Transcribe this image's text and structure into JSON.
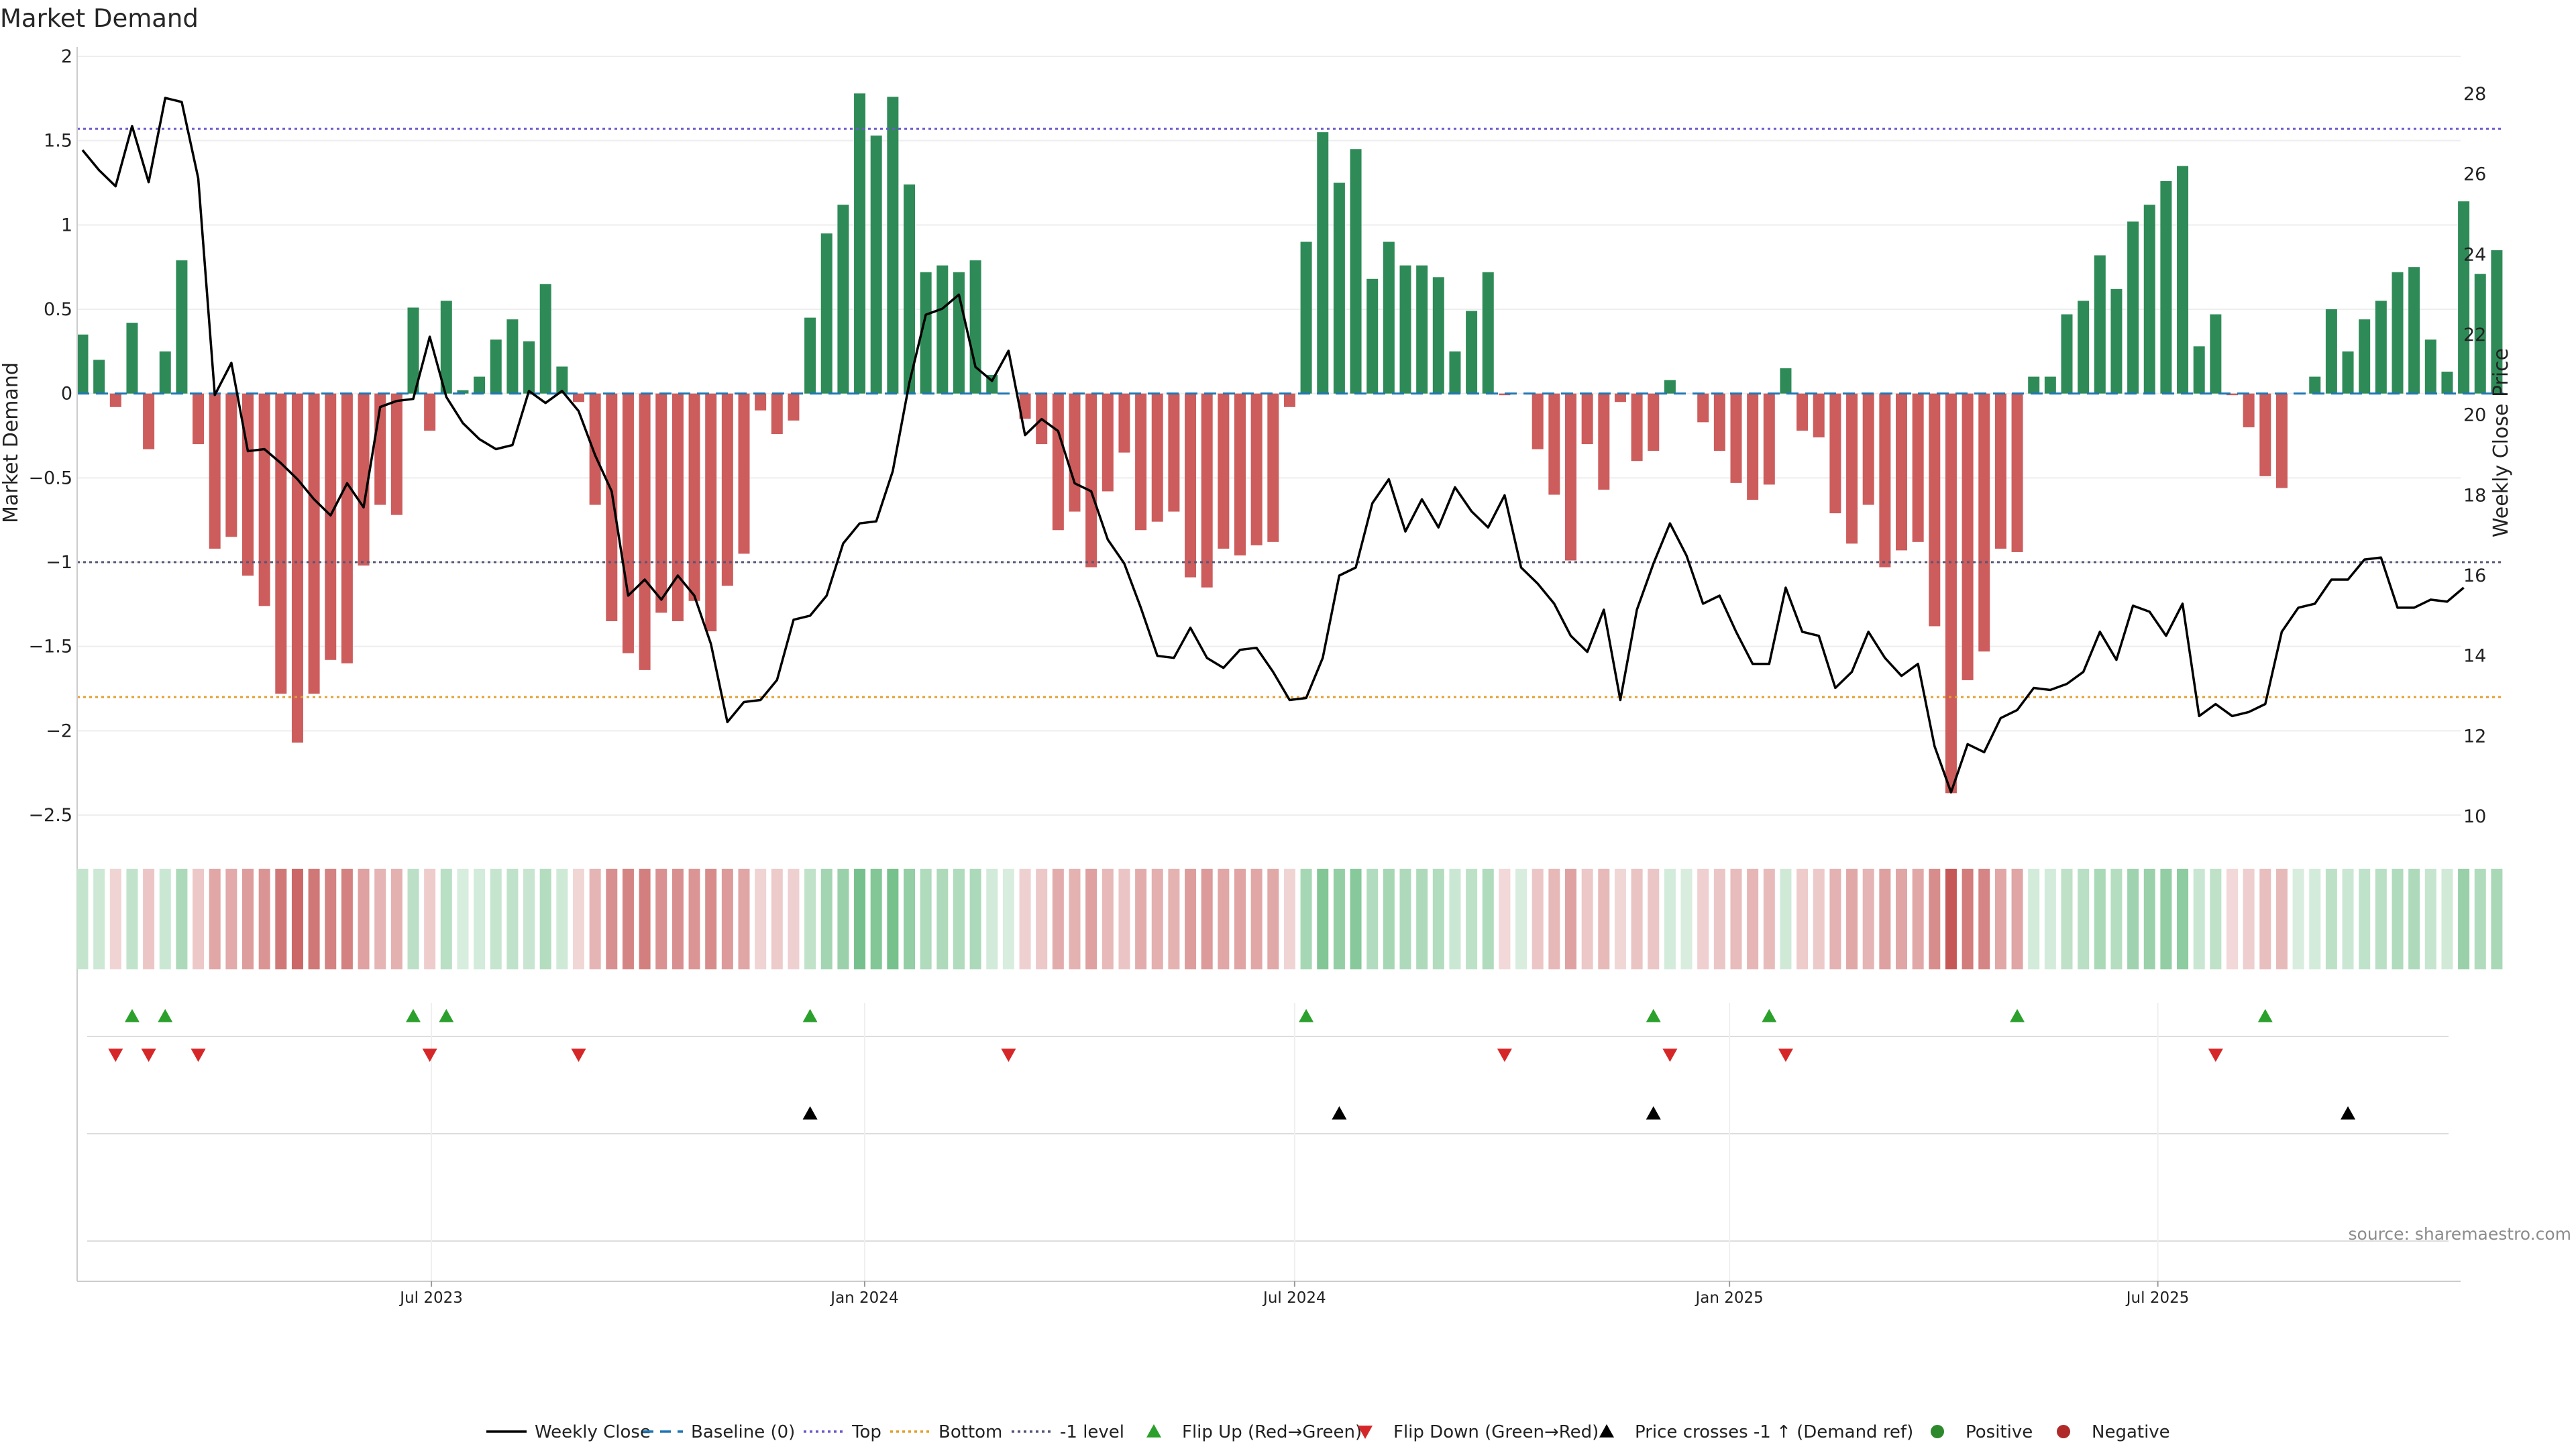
{
  "chart_data": {
    "type": "bar",
    "title": "Market Demand",
    "ylabel": "Market Demand",
    "y2label": "Weekly Close Price",
    "ylim": [
      -2.5,
      2
    ],
    "y2lim": [
      10,
      28
    ],
    "yticks": [
      "2",
      "1.5",
      "1",
      "0.5",
      "0",
      "−0.5",
      "−1",
      "−1.5",
      "−2",
      "−2.5"
    ],
    "y2ticks": [
      "28",
      "26",
      "24",
      "22",
      "20",
      "18",
      "16",
      "14",
      "12",
      "10"
    ],
    "xtick_labels": [
      "Jul 2023",
      "Jan 2024",
      "Jul 2024",
      "Jan 2025",
      "Jul 2025"
    ],
    "xtick_weeks": [
      21.1,
      47.3,
      73.3,
      99.6,
      125.5
    ],
    "levels": {
      "top": 1.57,
      "bottom": -1.8,
      "minus_one": -1,
      "baseline": 0
    },
    "colors": {
      "positive": "#2e8b57",
      "negative": "#cd5c5c",
      "price": "#000000",
      "top": "#6a5acd",
      "bottom": "#e3a02e",
      "minus_one": "#555577",
      "baseline": "#1f77b4",
      "flip_up": "#2ca02c",
      "flip_down": "#d62728",
      "cross": "#000000"
    },
    "demand": [
      0.35,
      0.2,
      -0.08,
      0.42,
      -0.33,
      0.25,
      0.79,
      -0.3,
      -0.92,
      -0.85,
      -1.08,
      -1.26,
      -1.78,
      -2.07,
      -1.78,
      -1.58,
      -1.6,
      -1.02,
      -0.66,
      -0.72,
      0.51,
      -0.22,
      0.55,
      0.02,
      0.1,
      0.32,
      0.44,
      0.31,
      0.65,
      0.16,
      -0.05,
      -0.66,
      -1.35,
      -1.54,
      -1.64,
      -1.3,
      -1.35,
      -1.23,
      -1.41,
      -1.14,
      -0.95,
      -0.1,
      -0.24,
      -0.16,
      0.45,
      0.95,
      1.12,
      1.78,
      1.53,
      1.76,
      1.24,
      0.72,
      0.76,
      0.72,
      0.79,
      0.11,
      0,
      -0.15,
      -0.3,
      -0.81,
      -0.7,
      -1.03,
      -0.58,
      -0.35,
      -0.81,
      -0.76,
      -0.7,
      -1.09,
      -1.15,
      -0.92,
      -0.96,
      -0.9,
      -0.88,
      -0.08,
      0.9,
      1.55,
      1.25,
      1.45,
      0.68,
      0.9,
      0.76,
      0.76,
      0.69,
      0.25,
      0.49,
      0.72,
      -0.01,
      0,
      -0.33,
      -0.6,
      -0.99,
      -0.3,
      -0.57,
      -0.05,
      -0.4,
      -0.34,
      0.08,
      0,
      -0.17,
      -0.34,
      -0.53,
      -0.63,
      -0.54,
      0.15,
      -0.22,
      -0.26,
      -0.71,
      -0.89,
      -0.66,
      -1.03,
      -0.93,
      -0.88,
      -1.38,
      -2.37,
      -1.7,
      -1.53,
      -0.92,
      -0.94,
      0.1,
      0.1,
      0.47,
      0.55,
      0.82,
      0.62,
      1.02,
      1.12,
      1.26,
      1.35,
      0.28,
      0.47,
      -0.01,
      -0.2,
      -0.49,
      -0.56,
      0,
      0.1,
      0.5,
      0.25,
      0.44,
      0.55,
      0.72,
      0.75,
      0.32,
      0.13,
      1.14,
      0.71,
      0.85
    ],
    "price": [
      26.6,
      26.1,
      25.7,
      27.2,
      25.8,
      27.9,
      27.8,
      25.9,
      20.5,
      21.3,
      19.1,
      19.15,
      18.8,
      18.4,
      17.9,
      17.5,
      18.3,
      17.7,
      20.2,
      20.35,
      20.4,
      21.95,
      20.45,
      19.8,
      19.4,
      19.15,
      19.25,
      20.6,
      20.3,
      20.6,
      20.1,
      19.0,
      18.1,
      15.5,
      15.9,
      15.4,
      16.0,
      15.5,
      14.3,
      12.35,
      12.85,
      12.9,
      13.4,
      14.9,
      15.0,
      15.5,
      16.8,
      17.3,
      17.35,
      18.6,
      20.8,
      22.5,
      22.65,
      23.0,
      21.2,
      20.85,
      21.6,
      19.5,
      19.9,
      19.6,
      18.3,
      18.1,
      16.9,
      16.3,
      15.2,
      14.0,
      13.95,
      14.7,
      13.95,
      13.7,
      14.15,
      14.2,
      13.6,
      12.9,
      12.95,
      13.95,
      16.0,
      16.2,
      17.8,
      18.4,
      17.1,
      17.9,
      17.2,
      18.2,
      17.6,
      17.2,
      18.0,
      16.2,
      15.8,
      15.3,
      14.5,
      14.1,
      15.15,
      12.9,
      15.15,
      16.3,
      17.3,
      16.5,
      15.3,
      15.5,
      14.6,
      13.8,
      13.8,
      15.7,
      14.6,
      14.5,
      13.2,
      13.6,
      14.6,
      13.95,
      13.5,
      13.8,
      11.75,
      10.6,
      11.8,
      11.6,
      12.45,
      12.65,
      13.2,
      13.15,
      13.3,
      13.6,
      14.6,
      13.9,
      15.25,
      15.1,
      14.5,
      15.3,
      12.5,
      12.8,
      12.5,
      12.6,
      12.8,
      14.6,
      15.2,
      15.3,
      15.9,
      15.9,
      16.4,
      16.45,
      15.2,
      15.2,
      15.4,
      15.35,
      15.7
    ],
    "flip_up_weeks": [
      3,
      5,
      20,
      22,
      44,
      74,
      95,
      102,
      117,
      132
    ],
    "flip_down_weeks": [
      2,
      4,
      7,
      21,
      30,
      56,
      86,
      96,
      103,
      129
    ],
    "cross_weeks": [
      44,
      76,
      95,
      137
    ],
    "legend": [
      {
        "label": "Weekly Close",
        "kind": "line-solid"
      },
      {
        "label": "Baseline (0)",
        "kind": "line-dash"
      },
      {
        "label": "Top",
        "kind": "line-dot-top"
      },
      {
        "label": "Bottom",
        "kind": "line-dot-bottom"
      },
      {
        "label": "-1 level",
        "kind": "line-dot-m1"
      },
      {
        "label": "Flip Up (Red→Green)",
        "kind": "tri-up-green"
      },
      {
        "label": "Flip Down (Green→Red)",
        "kind": "tri-down-red"
      },
      {
        "label": "Price crosses -1 ↑ (Demand ref)",
        "kind": "tri-up-black"
      },
      {
        "label": "Positive",
        "kind": "dot-green"
      },
      {
        "label": "Negative",
        "kind": "dot-red"
      }
    ],
    "source": "source: sharemaestro.com"
  }
}
